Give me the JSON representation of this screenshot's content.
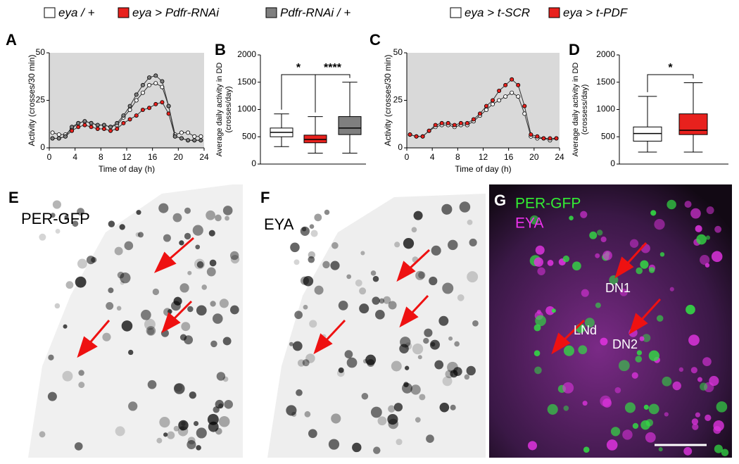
{
  "chart_data": [
    {
      "type": "line",
      "panel": "A",
      "background": "#d9d9d9",
      "x_label": "Time of day (h)",
      "y_label": "Activity (crosses/30 min)",
      "x": [
        0.5,
        1.5,
        2.5,
        3.5,
        4.5,
        5.5,
        6.5,
        7.5,
        8.5,
        9.5,
        10.5,
        11.5,
        12.5,
        13.5,
        14.5,
        15.5,
        16.5,
        17.5,
        18.5,
        19.5,
        20.5,
        21.5,
        22.5,
        23.5
      ],
      "xlim": [
        0,
        24
      ],
      "xticks": [
        0,
        4,
        8,
        12,
        16,
        20,
        24
      ],
      "ylim": [
        0,
        50
      ],
      "yticks": [
        0,
        25,
        50
      ],
      "series": [
        {
          "name": "eya / +",
          "color": "#ffffff",
          "values": [
            8,
            7,
            7,
            10,
            13,
            14,
            13,
            12,
            12,
            11,
            12,
            16,
            20,
            25,
            29,
            33,
            34,
            32,
            22,
            7,
            8,
            8,
            6,
            6
          ]
        },
        {
          "name": "eya > Pdfr-RNAi",
          "color": "#e8211d",
          "values": [
            5,
            5,
            6,
            9,
            11,
            12,
            11,
            10,
            10,
            9,
            10,
            13,
            15,
            17,
            20,
            21,
            23,
            24,
            18,
            6,
            5,
            4,
            4,
            4
          ]
        },
        {
          "name": "Pdfr-RNAi / +",
          "color": "#7f7f7f",
          "values": [
            5,
            5,
            6,
            11,
            13,
            14,
            13,
            12,
            12,
            11,
            13,
            17,
            22,
            28,
            33,
            37,
            38,
            35,
            22,
            6,
            5,
            4,
            4,
            4
          ]
        }
      ]
    },
    {
      "type": "box",
      "panel": "B",
      "y_label": [
        "Average daily activity in DD",
        "(crosses/day)"
      ],
      "ylim": [
        0,
        2000
      ],
      "yticks": [
        0,
        500,
        1000,
        1500,
        2000
      ],
      "boxes": [
        {
          "color": "#ffffff",
          "min": 320,
          "q1": 500,
          "median": 580,
          "q3": 660,
          "max": 920
        },
        {
          "color": "#e8211d",
          "min": 200,
          "q1": 390,
          "median": 450,
          "q3": 530,
          "max": 870
        },
        {
          "color": "#7f7f7f",
          "min": 200,
          "q1": 540,
          "median": 660,
          "q3": 870,
          "max": 1500
        }
      ],
      "significance": [
        "*",
        "****"
      ]
    },
    {
      "type": "line",
      "panel": "C",
      "background": "#d9d9d9",
      "x_label": "Time of day (h)",
      "y_label": "Activity (crosses/30 min)",
      "x": [
        0.5,
        1.5,
        2.5,
        3.5,
        4.5,
        5.5,
        6.5,
        7.5,
        8.5,
        9.5,
        10.5,
        11.5,
        12.5,
        13.5,
        14.5,
        15.5,
        16.5,
        17.5,
        18.5,
        19.5,
        20.5,
        21.5,
        22.5,
        23.5
      ],
      "xlim": [
        0,
        24
      ],
      "xticks": [
        0,
        4,
        8,
        12,
        16,
        20,
        24
      ],
      "ylim": [
        0,
        50
      ],
      "yticks": [
        0,
        25,
        50
      ],
      "series": [
        {
          "name": "eya > t-SCR",
          "color": "#ffffff",
          "values": [
            7,
            6,
            6,
            9,
            11,
            12,
            12,
            11,
            12,
            12,
            14,
            17,
            20,
            23,
            25,
            27,
            29,
            27,
            18,
            6,
            5,
            5,
            4,
            5
          ]
        },
        {
          "name": "eya > t-PDF",
          "color": "#e8211d",
          "values": [
            7,
            6,
            6,
            9,
            12,
            13,
            13,
            12,
            13,
            13,
            15,
            18,
            22,
            25,
            30,
            33,
            36,
            33,
            22,
            7,
            6,
            5,
            5,
            5
          ]
        }
      ]
    },
    {
      "type": "box",
      "panel": "D",
      "y_label": [
        "Average daily activity in DD",
        "(crossess/day)"
      ],
      "ylim": [
        0,
        2000
      ],
      "yticks": [
        0,
        500,
        1000,
        1500,
        2000
      ],
      "boxes": [
        {
          "color": "#ffffff",
          "min": 220,
          "q1": 420,
          "median": 560,
          "q3": 680,
          "max": 1240
        },
        {
          "color": "#e8211d",
          "min": 220,
          "q1": 540,
          "median": 620,
          "q3": 920,
          "max": 1490
        }
      ],
      "significance": [
        "*"
      ]
    }
  ],
  "images": [
    {
      "panel": "E",
      "labels": [
        "PER-GFP"
      ]
    },
    {
      "panel": "F",
      "labels": [
        "EYA"
      ]
    },
    {
      "panel": "G",
      "labels": [
        "PER-GFP",
        "EYA"
      ],
      "cells": [
        "DN1",
        "LNd",
        "DN2"
      ]
    }
  ]
}
